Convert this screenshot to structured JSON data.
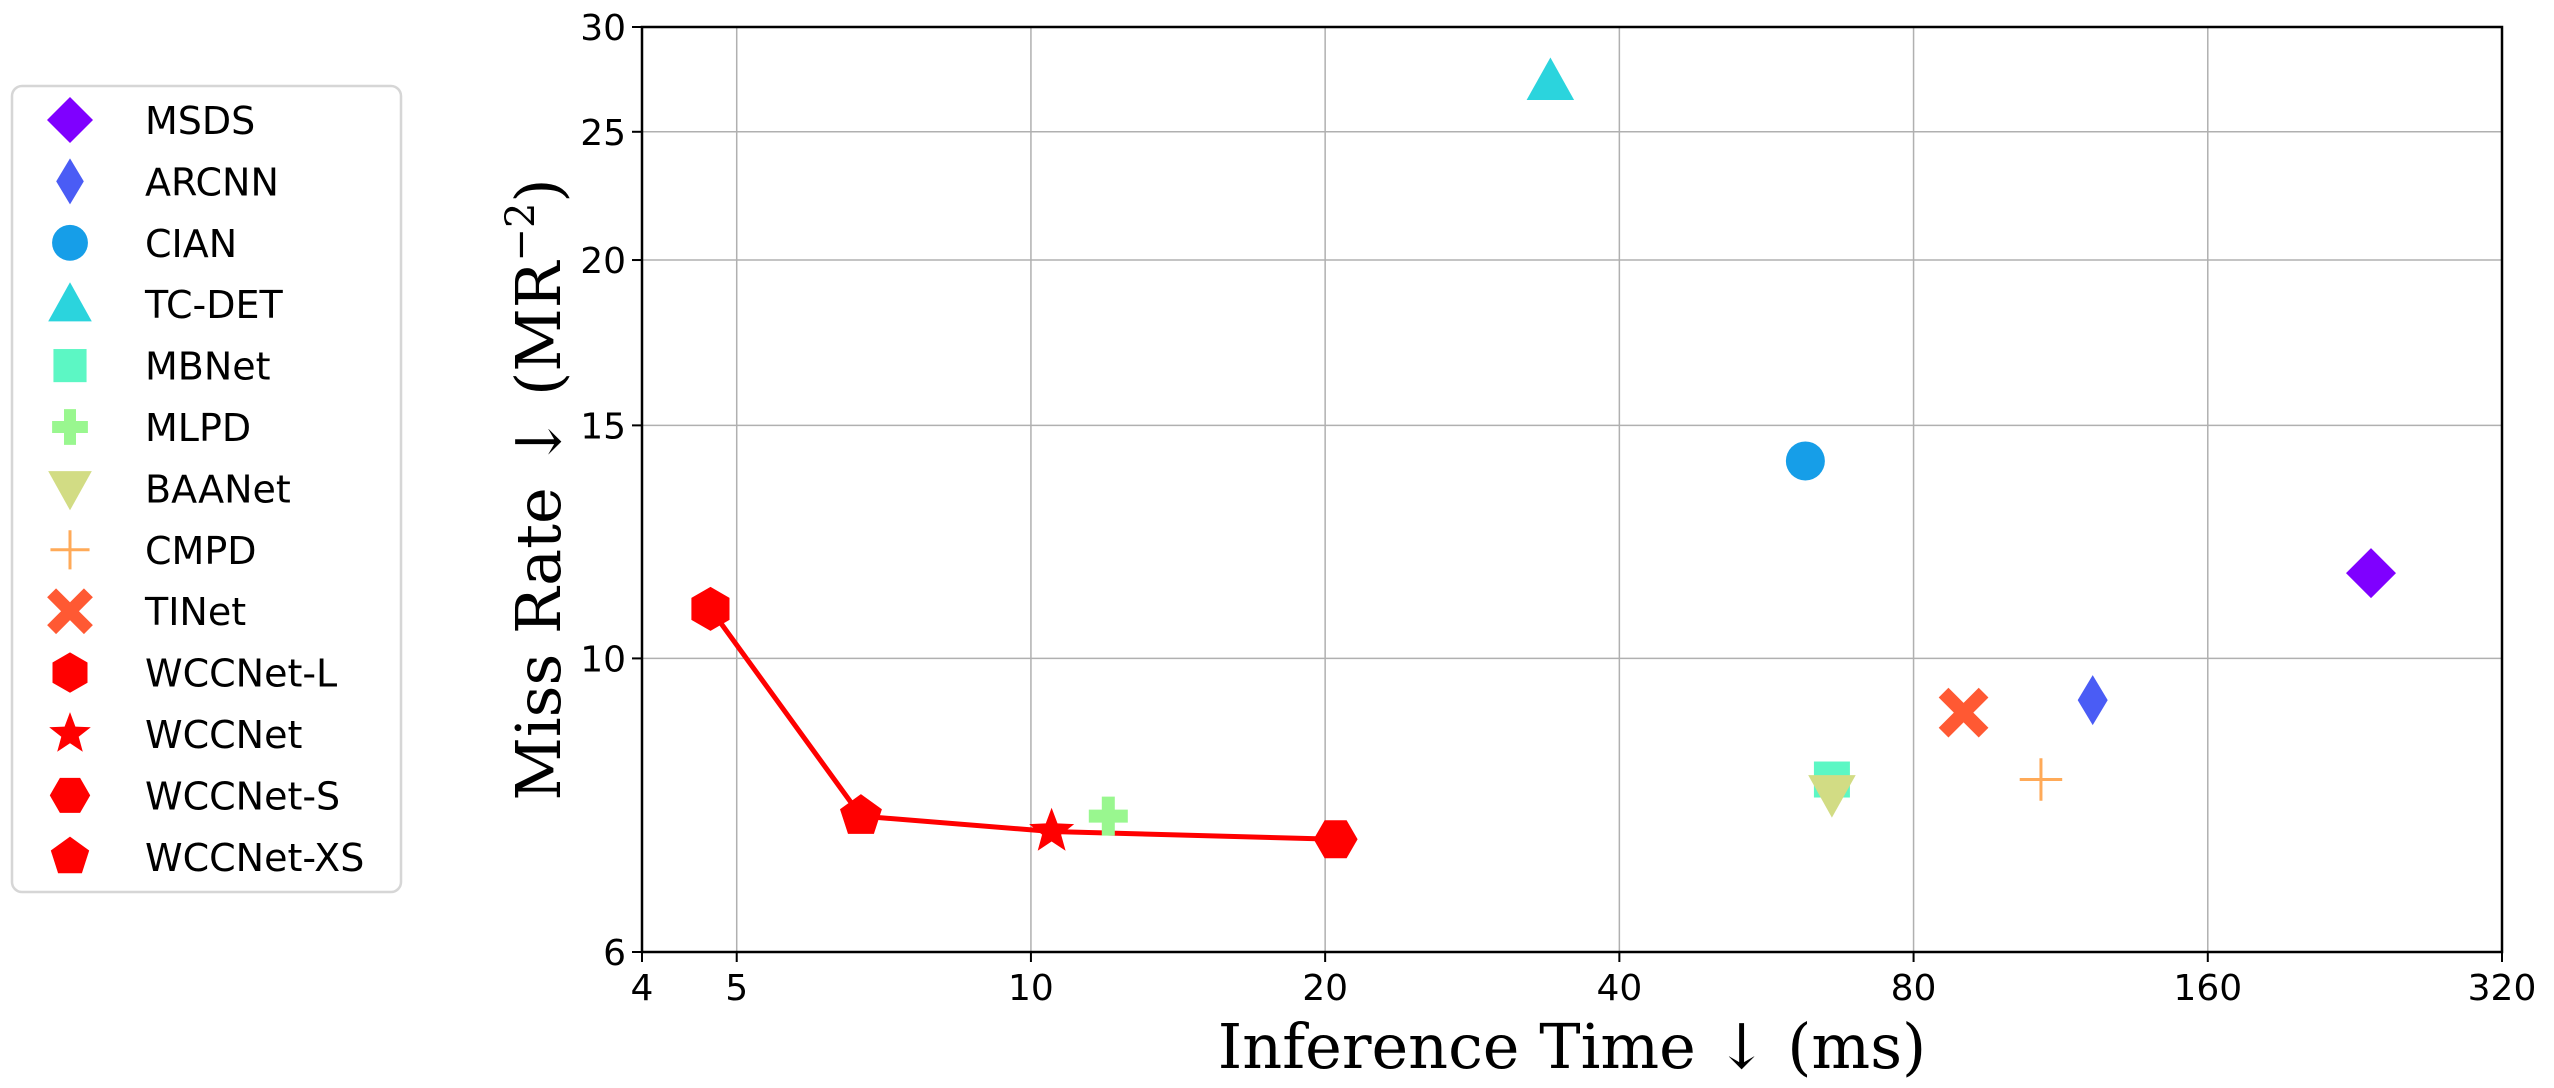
{
  "chart_data": {
    "type": "scatter",
    "xlabel": "Inference Time ↓  (ms)",
    "ylabel_main": "Miss Rate ↓  (MR",
    "ylabel_sup": "−2",
    "ylabel_close": ")",
    "x_scale": "log2",
    "y_scale": "log",
    "xlim": [
      4,
      320
    ],
    "ylim": [
      6,
      30
    ],
    "x_ticks": [
      4,
      5,
      10,
      20,
      40,
      80,
      160,
      320
    ],
    "y_ticks": [
      6,
      10,
      15,
      20,
      25,
      30
    ],
    "grid": true,
    "legend_position": "left-outside",
    "series": [
      {
        "name": "MSDS",
        "marker": "diamond",
        "color": "#7f00ff",
        "x": [
          235
        ],
        "y": [
          11.6
        ]
      },
      {
        "name": "ARCNN",
        "marker": "thin_diamond",
        "color": "#4a5cf5",
        "x": [
          122
        ],
        "y": [
          9.3
        ]
      },
      {
        "name": "CIAN",
        "marker": "circle",
        "color": "#169ee8",
        "x": [
          62
        ],
        "y": [
          14.1
        ]
      },
      {
        "name": "TC-DET",
        "marker": "triangle_up",
        "color": "#2bd4dd",
        "x": [
          34
        ],
        "y": [
          27.3
        ]
      },
      {
        "name": "MBNet",
        "marker": "square",
        "color": "#5cf7c4",
        "x": [
          66
        ],
        "y": [
          8.1
        ]
      },
      {
        "name": "MLPD",
        "marker": "plus_filled",
        "color": "#99f78f",
        "x": [
          12
        ],
        "y": [
          7.6
        ]
      },
      {
        "name": "BAANet",
        "marker": "triangle_down",
        "color": "#d2dc84",
        "x": [
          66
        ],
        "y": [
          7.9
        ]
      },
      {
        "name": "CMPD",
        "marker": "plus_thin",
        "color": "#ffaa58",
        "x": [
          108
        ],
        "y": [
          8.1
        ]
      },
      {
        "name": "TINet",
        "marker": "x_filled",
        "color": "#ff5933",
        "x": [
          90
        ],
        "y": [
          9.1
        ]
      },
      {
        "name": "WCCNet-L",
        "marker": "hexagon",
        "color": "#ff0000",
        "x": [
          4.7
        ],
        "y": [
          10.9
        ]
      },
      {
        "name": "WCCNet",
        "marker": "star",
        "color": "#ff0000",
        "x": [
          10.5
        ],
        "y": [
          7.4
        ]
      },
      {
        "name": "WCCNet-S",
        "marker": "hexagon2",
        "color": "#ff0000",
        "x": [
          20.5
        ],
        "y": [
          7.3
        ]
      },
      {
        "name": "WCCNet-XS",
        "marker": "pentagon",
        "color": "#ff0000",
        "x": [
          6.7
        ],
        "y": [
          7.6
        ]
      }
    ],
    "line": {
      "color": "#ff0000",
      "points": [
        [
          4.7,
          10.9
        ],
        [
          6.7,
          7.6
        ],
        [
          10.5,
          7.4
        ],
        [
          20.5,
          7.3
        ]
      ]
    }
  }
}
